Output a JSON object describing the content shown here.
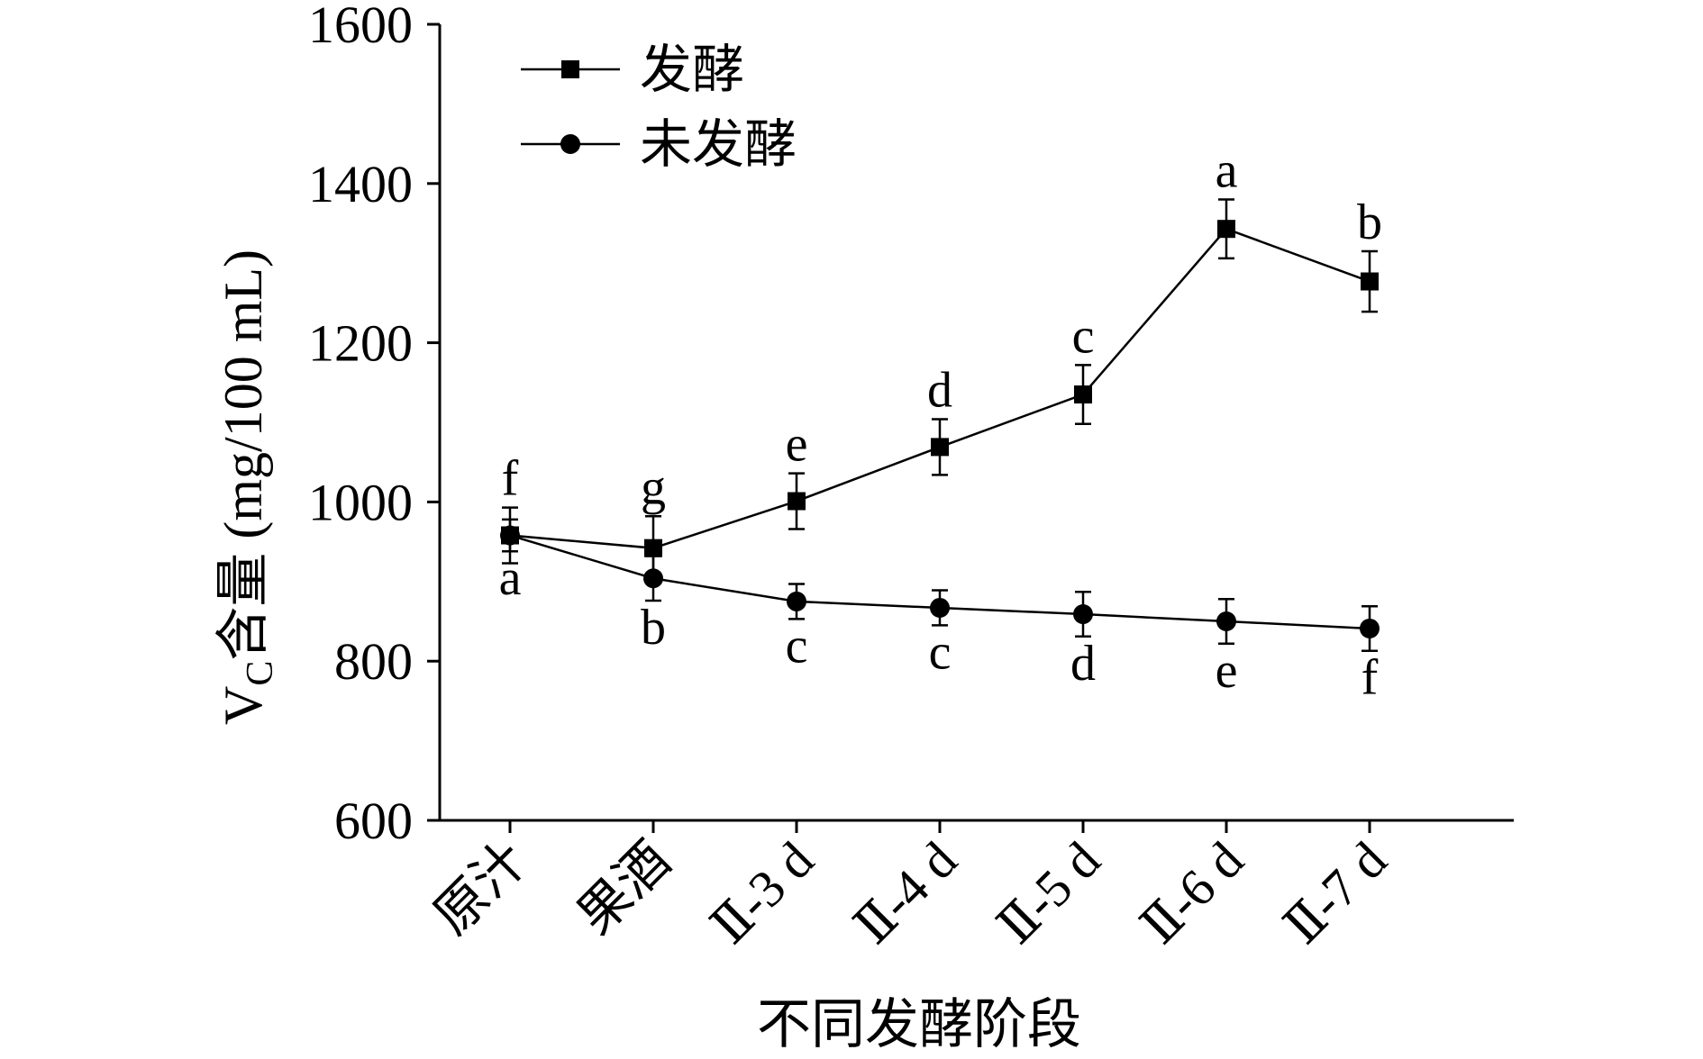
{
  "chart_data": {
    "type": "line",
    "xlabel": "不同发酵阶段",
    "ylabel": {
      "main": "V",
      "sub": "C",
      "rest": "含量 (mg/100 mL)"
    },
    "ylim": [
      600,
      1600
    ],
    "yticks": [
      600,
      800,
      1000,
      1200,
      1400,
      1600
    ],
    "categories": [
      "原汁",
      "果酒",
      "Ⅱ-3 d",
      "Ⅱ-4 d",
      "Ⅱ-5 d",
      "Ⅱ-6 d",
      "Ⅱ-7 d"
    ],
    "legend_position": "top-left",
    "grid": false,
    "series": [
      {
        "name": "发酵",
        "marker": "square",
        "values": [
          958,
          942,
          1001,
          1069,
          1135,
          1343,
          1277
        ],
        "errors": [
          35,
          40,
          35,
          35,
          37,
          37,
          38
        ],
        "letters": [
          "f",
          "g",
          "e",
          "d",
          "c",
          "a",
          "b"
        ],
        "letter_position": "above"
      },
      {
        "name": "未发酵",
        "marker": "circle",
        "values": [
          958,
          904,
          875,
          867,
          859,
          850,
          841
        ],
        "errors": [
          20,
          28,
          22,
          22,
          28,
          28,
          28
        ],
        "letters": [
          "a",
          "b",
          "c",
          "c",
          "d",
          "e",
          "f"
        ],
        "letter_position": "below"
      }
    ]
  }
}
